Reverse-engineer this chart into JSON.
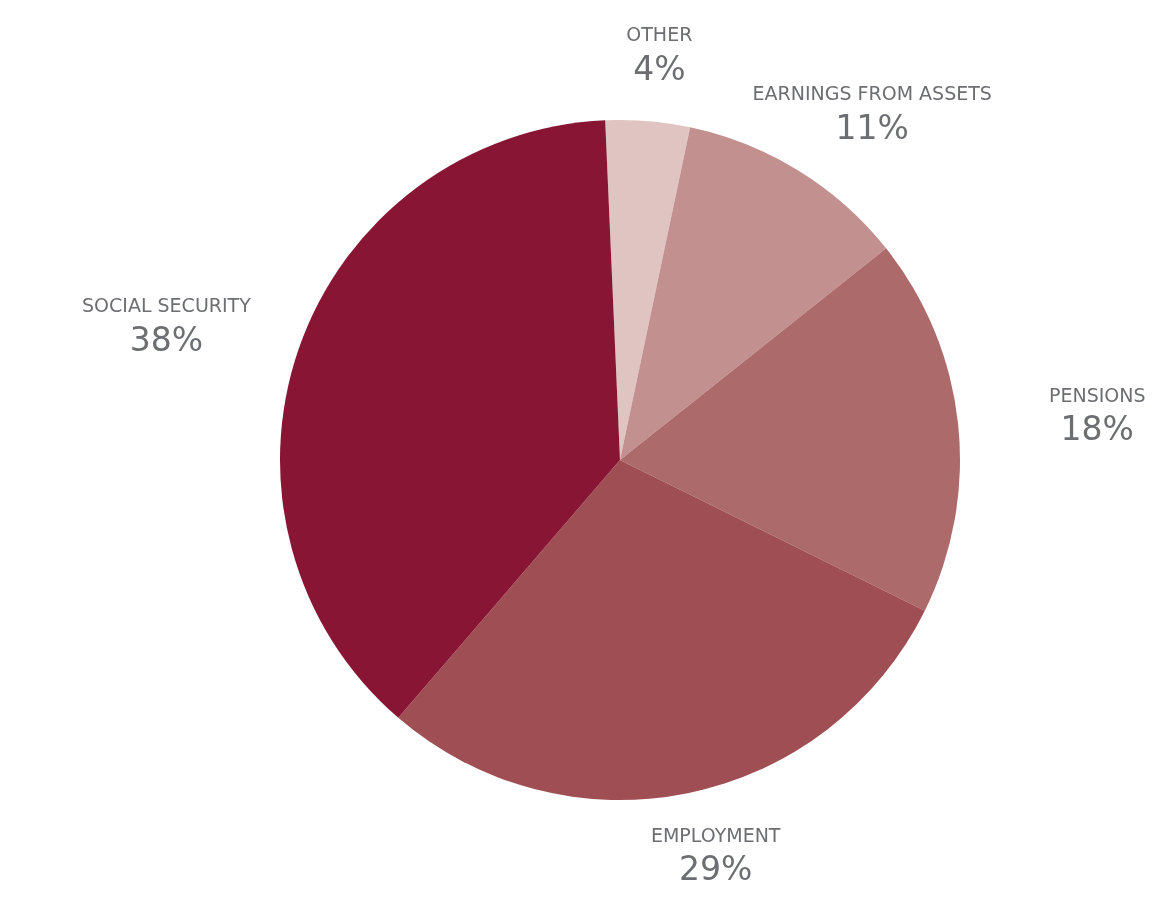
{
  "chart_data": {
    "type": "pie",
    "categories": [
      "OTHER",
      "EARNINGS FROM ASSETS",
      "PENSIONS",
      "EMPLOYMENT",
      "SOCIAL SECURITY"
    ],
    "values": [
      4,
      11,
      18,
      29,
      38
    ],
    "value_labels": [
      "4%",
      "11%",
      "18%",
      "29%",
      "38%"
    ],
    "colors": [
      "#e0c4c1",
      "#c2908e",
      "#ad6a6a",
      "#9f4e53",
      "#881534"
    ],
    "legend": false
  }
}
